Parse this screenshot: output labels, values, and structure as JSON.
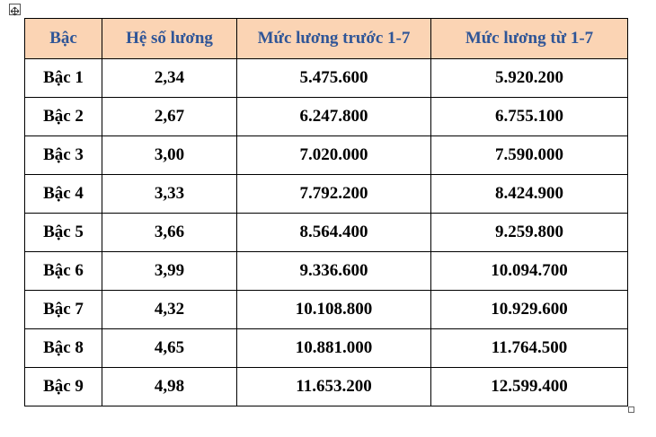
{
  "table": {
    "header": [
      "Bậc",
      "Hệ số lương",
      "Mức lương trước 1-7",
      "Mức lương từ 1-7"
    ],
    "rows": [
      [
        "Bậc 1",
        "2,34",
        "5.475.600",
        "5.920.200"
      ],
      [
        "Bậc 2",
        "2,67",
        "6.247.800",
        "6.755.100"
      ],
      [
        "Bậc 3",
        "3,00",
        "7.020.000",
        "7.590.000"
      ],
      [
        "Bậc 4",
        "3,33",
        "7.792.200",
        "8.424.900"
      ],
      [
        "Bậc 5",
        "3,66",
        "8.564.400",
        "9.259.800"
      ],
      [
        "Bậc 6",
        "3,99",
        "9.336.600",
        "10.094.700"
      ],
      [
        "Bậc 7",
        "4,32",
        "10.108.800",
        "10.929.600"
      ],
      [
        "Bậc 8",
        "4,65",
        "10.881.000",
        "11.764.500"
      ],
      [
        "Bậc 9",
        "4,98",
        "11.653.200",
        "12.599.400"
      ]
    ]
  }
}
